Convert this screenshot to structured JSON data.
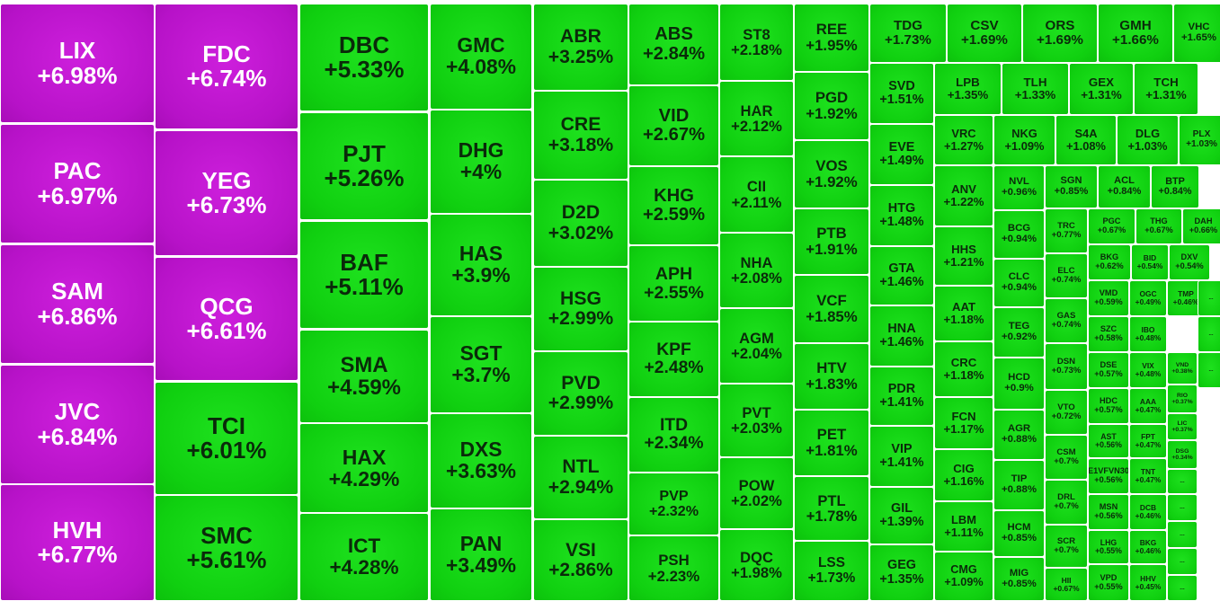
{
  "colors": {
    "ceiling": "#b712c8",
    "up": "#10d010"
  },
  "tiles": [
    {
      "s": "LIX",
      "p": "+6.98%",
      "t": "ceil"
    },
    {
      "s": "PAC",
      "p": "+6.97%",
      "t": "ceil"
    },
    {
      "s": "SAM",
      "p": "+6.86%",
      "t": "ceil"
    },
    {
      "s": "JVC",
      "p": "+6.84%",
      "t": "ceil"
    },
    {
      "s": "HVH",
      "p": "+6.77%",
      "t": "ceil"
    },
    {
      "s": "FDC",
      "p": "+6.74%",
      "t": "ceil"
    },
    {
      "s": "YEG",
      "p": "+6.73%",
      "t": "ceil"
    },
    {
      "s": "QCG",
      "p": "+6.61%",
      "t": "ceil"
    },
    {
      "s": "TCI",
      "p": "+6.01%",
      "t": "up"
    },
    {
      "s": "SMC",
      "p": "+5.61%",
      "t": "up"
    },
    {
      "s": "DBC",
      "p": "+5.33%",
      "t": "up"
    },
    {
      "s": "PJT",
      "p": "+5.26%",
      "t": "up"
    },
    {
      "s": "BAF",
      "p": "+5.11%",
      "t": "up"
    },
    {
      "s": "SMA",
      "p": "+4.59%",
      "t": "up"
    },
    {
      "s": "HAX",
      "p": "+4.29%",
      "t": "up"
    },
    {
      "s": "ICT",
      "p": "+4.28%",
      "t": "up"
    },
    {
      "s": "GMC",
      "p": "+4.08%",
      "t": "up"
    },
    {
      "s": "DHG",
      "p": "+4%",
      "t": "up"
    },
    {
      "s": "HAS",
      "p": "+3.9%",
      "t": "up"
    },
    {
      "s": "SGT",
      "p": "+3.7%",
      "t": "up"
    },
    {
      "s": "DXS",
      "p": "+3.63%",
      "t": "up"
    },
    {
      "s": "PAN",
      "p": "+3.49%",
      "t": "up"
    },
    {
      "s": "ABR",
      "p": "+3.25%",
      "t": "up"
    },
    {
      "s": "CRE",
      "p": "+3.18%",
      "t": "up"
    },
    {
      "s": "D2D",
      "p": "+3.02%",
      "t": "up"
    },
    {
      "s": "HSG",
      "p": "+2.99%",
      "t": "up"
    },
    {
      "s": "PVD",
      "p": "+2.99%",
      "t": "up"
    },
    {
      "s": "NTL",
      "p": "+2.94%",
      "t": "up"
    },
    {
      "s": "VSI",
      "p": "+2.86%",
      "t": "up"
    },
    {
      "s": "ABS",
      "p": "+2.84%",
      "t": "up"
    },
    {
      "s": "VID",
      "p": "+2.67%",
      "t": "up"
    },
    {
      "s": "KHG",
      "p": "+2.59%",
      "t": "up"
    },
    {
      "s": "APH",
      "p": "+2.55%",
      "t": "up"
    },
    {
      "s": "KPF",
      "p": "+2.48%",
      "t": "up"
    },
    {
      "s": "ITD",
      "p": "+2.34%",
      "t": "up"
    },
    {
      "s": "PVP",
      "p": "+2.32%",
      "t": "up"
    },
    {
      "s": "PSH",
      "p": "+2.23%",
      "t": "up"
    },
    {
      "s": "ST8",
      "p": "+2.18%",
      "t": "up"
    },
    {
      "s": "HAR",
      "p": "+2.12%",
      "t": "up"
    },
    {
      "s": "CII",
      "p": "+2.11%",
      "t": "up"
    },
    {
      "s": "NHA",
      "p": "+2.08%",
      "t": "up"
    },
    {
      "s": "AGM",
      "p": "+2.04%",
      "t": "up"
    },
    {
      "s": "PVT",
      "p": "+2.03%",
      "t": "up"
    },
    {
      "s": "POW",
      "p": "+2.02%",
      "t": "up"
    },
    {
      "s": "DQC",
      "p": "+1.98%",
      "t": "up"
    },
    {
      "s": "REE",
      "p": "+1.95%",
      "t": "up"
    },
    {
      "s": "PGD",
      "p": "+1.92%",
      "t": "up"
    },
    {
      "s": "VOS",
      "p": "+1.92%",
      "t": "up"
    },
    {
      "s": "PTB",
      "p": "+1.91%",
      "t": "up"
    },
    {
      "s": "VCF",
      "p": "+1.85%",
      "t": "up"
    },
    {
      "s": "HTV",
      "p": "+1.83%",
      "t": "up"
    },
    {
      "s": "PET",
      "p": "+1.81%",
      "t": "up"
    },
    {
      "s": "PTL",
      "p": "+1.78%",
      "t": "up"
    },
    {
      "s": "LSS",
      "p": "+1.73%",
      "t": "up"
    },
    {
      "s": "TDG",
      "p": "+1.73%",
      "t": "up"
    },
    {
      "s": "CSV",
      "p": "+1.69%",
      "t": "up"
    },
    {
      "s": "ORS",
      "p": "+1.69%",
      "t": "up"
    },
    {
      "s": "GMH",
      "p": "+1.66%",
      "t": "up"
    },
    {
      "s": "VHC",
      "p": "+1.65%",
      "t": "up"
    },
    {
      "s": "SVD",
      "p": "+1.51%",
      "t": "up"
    },
    {
      "s": "EVE",
      "p": "+1.49%",
      "t": "up"
    },
    {
      "s": "HTG",
      "p": "+1.48%",
      "t": "up"
    },
    {
      "s": "GTA",
      "p": "+1.46%",
      "t": "up"
    },
    {
      "s": "HNA",
      "p": "+1.46%",
      "t": "up"
    },
    {
      "s": "PDR",
      "p": "+1.41%",
      "t": "up"
    },
    {
      "s": "VIP",
      "p": "+1.41%",
      "t": "up"
    },
    {
      "s": "GIL",
      "p": "+1.39%",
      "t": "up"
    },
    {
      "s": "GEG",
      "p": "+1.35%",
      "t": "up"
    },
    {
      "s": "LPB",
      "p": "+1.35%",
      "t": "up"
    },
    {
      "s": "TLH",
      "p": "+1.33%",
      "t": "up"
    },
    {
      "s": "GEX",
      "p": "+1.31%",
      "t": "up"
    },
    {
      "s": "TCH",
      "p": "+1.31%",
      "t": "up"
    },
    {
      "s": "VRC",
      "p": "+1.27%",
      "t": "up"
    },
    {
      "s": "NKG",
      "p": "+1.09%",
      "t": "up"
    },
    {
      "s": "S4A",
      "p": "+1.08%",
      "t": "up"
    },
    {
      "s": "DLG",
      "p": "+1.03%",
      "t": "up"
    },
    {
      "s": "PLX",
      "p": "+1.03%",
      "t": "up"
    },
    {
      "s": "ANV",
      "p": "+1.22%",
      "t": "up"
    },
    {
      "s": "HHS",
      "p": "+1.21%",
      "t": "up"
    },
    {
      "s": "AAT",
      "p": "+1.18%",
      "t": "up"
    },
    {
      "s": "CRC",
      "p": "+1.18%",
      "t": "up"
    },
    {
      "s": "FCN",
      "p": "+1.17%",
      "t": "up"
    },
    {
      "s": "CIG",
      "p": "+1.16%",
      "t": "up"
    },
    {
      "s": "LBM",
      "p": "+1.11%",
      "t": "up"
    },
    {
      "s": "CMG",
      "p": "+1.09%",
      "t": "up"
    },
    {
      "s": "NVL",
      "p": "+0.96%",
      "t": "up"
    },
    {
      "s": "BCG",
      "p": "+0.94%",
      "t": "up"
    },
    {
      "s": "CLC",
      "p": "+0.94%",
      "t": "up"
    },
    {
      "s": "TEG",
      "p": "+0.92%",
      "t": "up"
    },
    {
      "s": "HCD",
      "p": "+0.9%",
      "t": "up"
    },
    {
      "s": "AGR",
      "p": "+0.88%",
      "t": "up"
    },
    {
      "s": "TIP",
      "p": "+0.88%",
      "t": "up"
    },
    {
      "s": "HCM",
      "p": "+0.85%",
      "t": "up"
    },
    {
      "s": "MIG",
      "p": "+0.85%",
      "t": "up"
    },
    {
      "s": "SGN",
      "p": "+0.85%",
      "t": "up"
    },
    {
      "s": "ACL",
      "p": "+0.84%",
      "t": "up"
    },
    {
      "s": "BTP",
      "p": "+0.84%",
      "t": "up"
    },
    {
      "s": "TRC",
      "p": "+0.77%",
      "t": "up"
    },
    {
      "s": "ELC",
      "p": "+0.74%",
      "t": "up"
    },
    {
      "s": "GAS",
      "p": "+0.74%",
      "t": "up"
    },
    {
      "s": "DSN",
      "p": "+0.73%",
      "t": "up"
    },
    {
      "s": "VTO",
      "p": "+0.72%",
      "t": "up"
    },
    {
      "s": "CSM",
      "p": "+0.7%",
      "t": "up"
    },
    {
      "s": "DRL",
      "p": "+0.7%",
      "t": "up"
    },
    {
      "s": "SCR",
      "p": "+0.7%",
      "t": "up"
    },
    {
      "s": "HII",
      "p": "+0.67%",
      "t": "up"
    },
    {
      "s": "PGC",
      "p": "+0.67%",
      "t": "up"
    },
    {
      "s": "THG",
      "p": "+0.67%",
      "t": "up"
    },
    {
      "s": "DAH",
      "p": "+0.66%",
      "t": "up"
    },
    {
      "s": "BKG",
      "p": "+0.62%",
      "t": "up"
    },
    {
      "s": "BID",
      "p": "+0.54%",
      "t": "up"
    },
    {
      "s": "DXV",
      "p": "+0.54%",
      "t": "up"
    },
    {
      "s": "VMD",
      "p": "+0.59%",
      "t": "up"
    },
    {
      "s": "OGC",
      "p": "+0.49%",
      "t": "up"
    },
    {
      "s": "TMP",
      "p": "+0.46%",
      "t": "up"
    },
    {
      "s": "SZC",
      "p": "+0.58%",
      "t": "up"
    },
    {
      "s": "IBO",
      "p": "+0.48%",
      "t": "up"
    },
    {
      "s": "DSE",
      "p": "+0.57%",
      "t": "up"
    },
    {
      "s": "VIX",
      "p": "+0.48%",
      "t": "up"
    },
    {
      "s": "VND",
      "p": "+0.38%",
      "t": "up"
    },
    {
      "s": "RIO",
      "p": "+0.37%",
      "t": "up"
    },
    {
      "s": "HDC",
      "p": "+0.57%",
      "t": "up"
    },
    {
      "s": "AAA",
      "p": "+0.47%",
      "t": "up"
    },
    {
      "s": "LIC",
      "p": "+0.37%",
      "t": "up"
    },
    {
      "s": "AST",
      "p": "+0.56%",
      "t": "up"
    },
    {
      "s": "FPT",
      "p": "+0.47%",
      "t": "up"
    },
    {
      "s": "DSG",
      "p": "+0.34%",
      "t": "up"
    },
    {
      "s": "E1VFVN30",
      "p": "+0.56%",
      "t": "up"
    },
    {
      "s": "TNT",
      "p": "+0.47%",
      "t": "up"
    },
    {
      "s": "MSN",
      "p": "+0.56%",
      "t": "up"
    },
    {
      "s": "DCB",
      "p": "+0.46%",
      "t": "up"
    },
    {
      "s": "LHG",
      "p": "+0.55%",
      "t": "up"
    },
    {
      "s": "BKG",
      "p": "+0.46%",
      "t": "up"
    },
    {
      "s": "VPD",
      "p": "+0.55%",
      "t": "up"
    },
    {
      "s": "HHV",
      "p": "+0.45%",
      "t": "up"
    },
    {
      "s": "...",
      "p": "",
      "t": "up"
    },
    {
      "s": "...",
      "p": "",
      "t": "up"
    },
    {
      "s": "...",
      "p": "",
      "t": "up"
    },
    {
      "s": "...",
      "p": "",
      "t": "up"
    },
    {
      "s": "...",
      "p": "",
      "t": "up"
    },
    {
      "s": "...",
      "p": "",
      "t": "up"
    },
    {
      "s": "...",
      "p": "",
      "t": "up"
    },
    {
      "s": "...",
      "p": "",
      "t": "up"
    }
  ]
}
